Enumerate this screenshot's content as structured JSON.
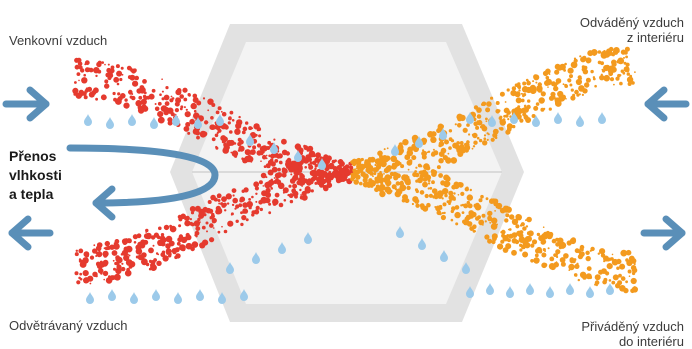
{
  "labels": {
    "top_left": "Venkovní vzduch",
    "top_right_line1": "Odváděný vzduch",
    "top_right_line2": "z interiéru",
    "bottom_left": "Odvětrávaný vzduch",
    "bottom_right_line1": "Přiváděný vzduch",
    "bottom_right_line2": "do interiéru",
    "transfer_line1": "Přenos",
    "transfer_line2": "vlhkosti",
    "transfer_line3": "a tepla"
  },
  "colors": {
    "outdoor_air": "#e53a2e",
    "indoor_air": "#f39a1e",
    "arrow": "#5a8fb8",
    "droplet": "#9ccaea",
    "exchanger_frame": "#e3e3e3",
    "exchanger_fill": "#f4f4f4"
  }
}
